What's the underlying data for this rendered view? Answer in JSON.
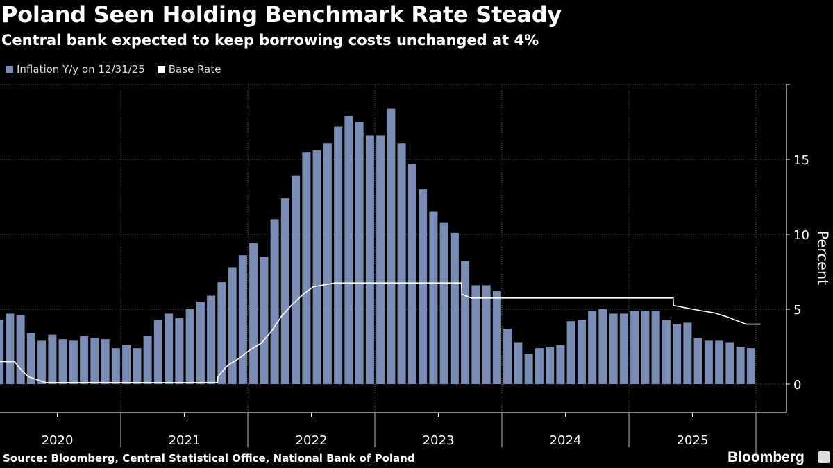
{
  "title": "Poland Seen Holding Benchmark Rate Steady",
  "subtitle": "Central bank expected to keep borrowing costs unchanged at 4%",
  "source": "Source: Bloomberg, Central Statistical Office, National Bank of Poland",
  "logo": "Bloomberg",
  "colors": {
    "bars": "#7b8db5",
    "line": "#ffffff",
    "background": "#000000"
  },
  "chart_data": {
    "type": "bar+line",
    "ylabel": "Percent",
    "ylim": [
      -1.9,
      20
    ],
    "yticks": [
      0,
      5,
      10,
      15
    ],
    "xticks": [
      "2020",
      "2021",
      "2022",
      "2023",
      "2024",
      "2025"
    ],
    "grid": true,
    "legend_placement": "top-left",
    "series": [
      {
        "name": "Inflation Y/y on 12/31/25",
        "type": "bar",
        "start": "2020-01",
        "frequency": "monthly",
        "values": [
          4.3,
          4.7,
          4.6,
          3.4,
          2.9,
          3.3,
          3.0,
          2.9,
          3.2,
          3.1,
          3.0,
          2.4,
          2.6,
          2.4,
          3.2,
          4.3,
          4.7,
          4.4,
          5.0,
          5.5,
          5.9,
          6.8,
          7.8,
          8.6,
          9.4,
          8.5,
          11.0,
          12.4,
          13.9,
          15.5,
          15.6,
          16.1,
          17.2,
          17.9,
          17.5,
          16.6,
          16.6,
          18.4,
          16.1,
          14.7,
          13.0,
          11.5,
          10.8,
          10.1,
          8.2,
          6.6,
          6.6,
          6.2,
          3.7,
          2.8,
          2.0,
          2.4,
          2.5,
          2.6,
          4.2,
          4.3,
          4.9,
          5.0,
          4.7,
          4.7,
          4.9,
          4.9,
          4.9,
          4.3,
          4.0,
          4.1,
          3.1,
          2.9,
          2.9,
          2.8,
          2.5,
          2.4
        ]
      },
      {
        "name": "Base Rate",
        "type": "line",
        "points": [
          [
            "2020-01-01",
            1.5
          ],
          [
            "2020-03-01",
            1.5
          ],
          [
            "2020-03-18",
            1.0
          ],
          [
            "2020-04-09",
            0.5
          ],
          [
            "2020-05-29",
            0.1
          ],
          [
            "2021-10-06",
            0.1
          ],
          [
            "2021-10-07",
            0.5
          ],
          [
            "2021-11-04",
            1.25
          ],
          [
            "2021-12-09",
            1.75
          ],
          [
            "2022-01-05",
            2.25
          ],
          [
            "2022-02-09",
            2.75
          ],
          [
            "2022-03-09",
            3.5
          ],
          [
            "2022-04-07",
            4.5
          ],
          [
            "2022-05-06",
            5.25
          ],
          [
            "2022-06-09",
            6.0
          ],
          [
            "2022-07-08",
            6.5
          ],
          [
            "2022-09-08",
            6.75
          ],
          [
            "2023-09-07",
            6.75
          ],
          [
            "2023-09-08",
            6.0
          ],
          [
            "2023-10-05",
            5.75
          ],
          [
            "2025-05-08",
            5.75
          ],
          [
            "2025-05-09",
            5.25
          ],
          [
            "2025-07-03",
            5.0
          ],
          [
            "2025-09-04",
            4.75
          ],
          [
            "2025-10-09",
            4.5
          ],
          [
            "2025-11-06",
            4.25
          ],
          [
            "2025-12-04",
            4.0
          ],
          [
            "2026-01-14",
            4.0
          ]
        ]
      }
    ]
  }
}
